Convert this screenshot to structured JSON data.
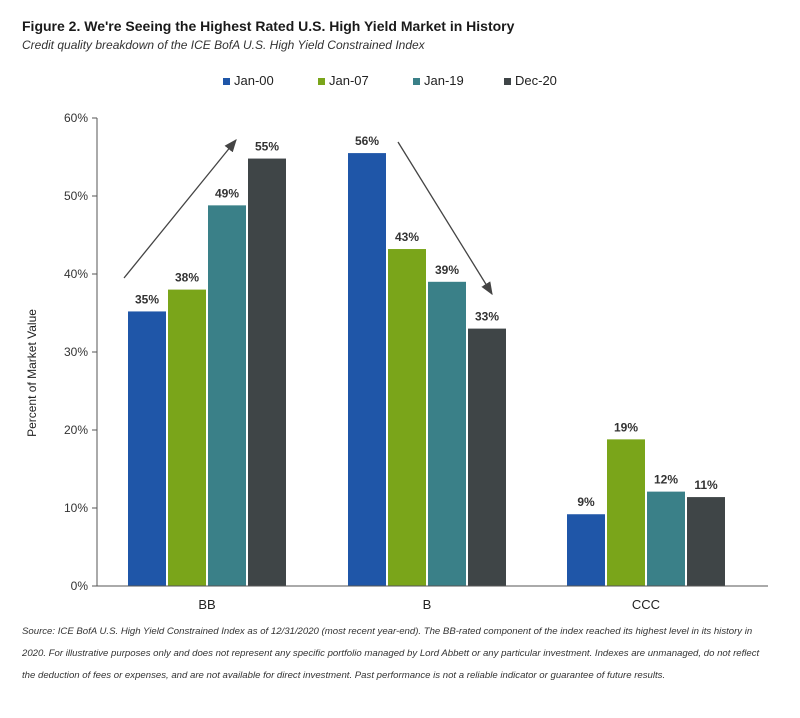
{
  "figure": {
    "title": "Figure 2. We're Seeing the Highest Rated U.S. High Yield Market in History",
    "subtitle": "Credit quality breakdown of the ICE BofA U.S. High Yield Constrained Index",
    "footnote": "Source: ICE BofA U.S. High Yield Constrained Index as of 12/31/2020 (most recent year-end). The BB-rated component of the index reached its highest level in its history in 2020. For illustrative purposes only and does not represent any specific portfolio managed by Lord Abbett or any particular investment. Indexes are unmanaged, do not reflect the deduction of fees or expenses, and are not available for direct investment. Past performance is not a reliable indicator or guarantee of future results."
  },
  "chart_data": {
    "type": "bar",
    "categories": [
      "BB",
      "B",
      "CCC"
    ],
    "series": [
      {
        "name": "Jan-00",
        "color": "#1f56a8",
        "values": [
          35,
          56,
          9
        ],
        "labels": [
          "35%",
          "56%",
          "9%"
        ]
      },
      {
        "name": "Jan-07",
        "color": "#7aa51a",
        "values": [
          38,
          43,
          19
        ],
        "labels": [
          "38%",
          "43%",
          "19%"
        ]
      },
      {
        "name": "Jan-19",
        "color": "#3a8088",
        "values": [
          49,
          39,
          12
        ],
        "labels": [
          "49%",
          "39%",
          "12%"
        ]
      },
      {
        "name": "Dec-20",
        "color": "#3f4547",
        "values": [
          55,
          33,
          11
        ],
        "labels": [
          "55%",
          "33%",
          "11%"
        ]
      }
    ],
    "bar_heights": [
      [
        35.2,
        55.5,
        9.2
      ],
      [
        38.0,
        43.2,
        18.8
      ],
      [
        48.8,
        39.0,
        12.1
      ],
      [
        54.8,
        33.0,
        11.4
      ]
    ],
    "ylabel": "Percent of Market Value",
    "ylim": [
      0,
      60
    ],
    "yticks": [
      0,
      10,
      20,
      30,
      40,
      50,
      60
    ],
    "ytick_labels": [
      "0%",
      "10%",
      "20%",
      "30%",
      "40%",
      "50%",
      "60%"
    ],
    "grid": false,
    "legend_position": "top-center"
  }
}
